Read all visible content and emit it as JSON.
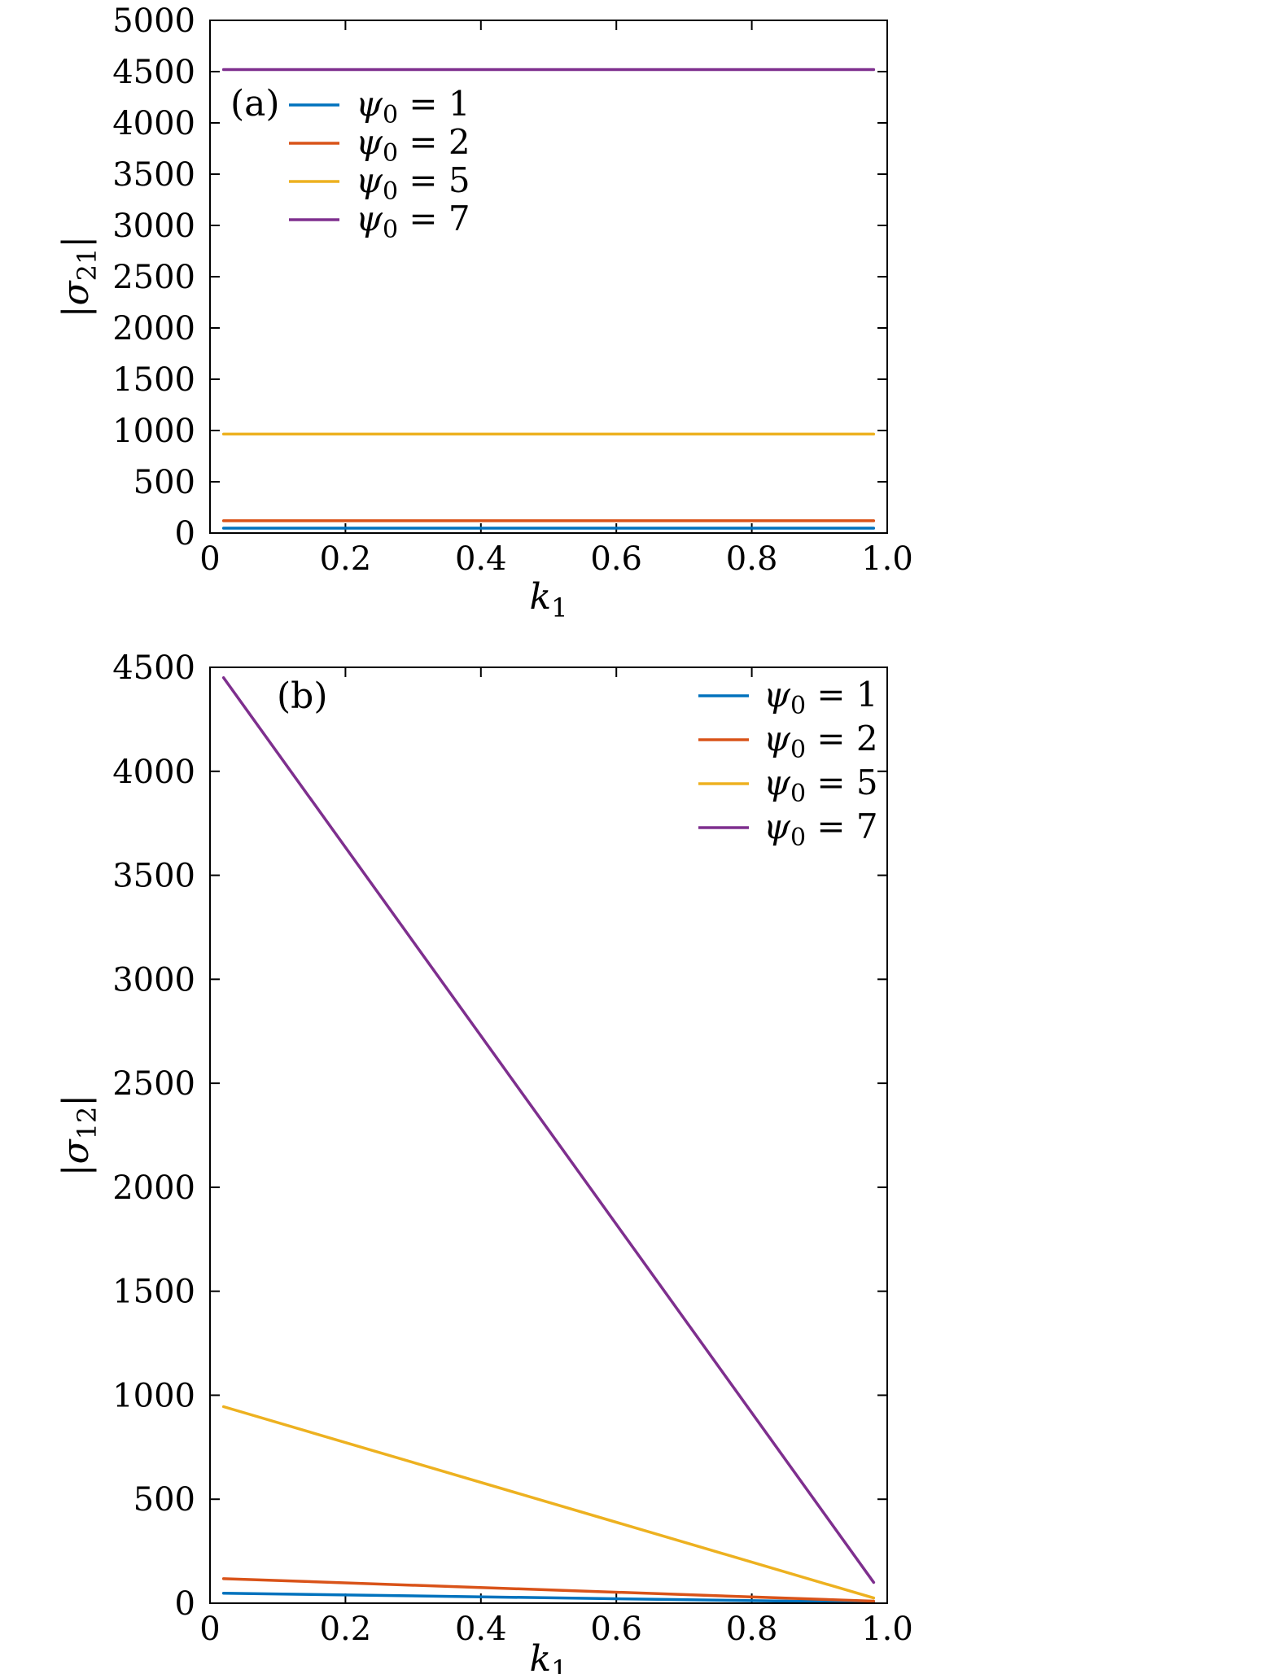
{
  "figure": {
    "background": "#ffffff",
    "axis_color": "#000000"
  },
  "chart_data": [
    {
      "id": "a",
      "type": "line",
      "panel_label": "(a)",
      "xlabel_segments": [
        {
          "t": "k",
          "italic": true
        },
        {
          "t": "1",
          "sub": true
        }
      ],
      "ylabel_segments": [
        {
          "t": "|",
          "italic": false
        },
        {
          "t": "σ",
          "italic": true
        },
        {
          "t": "21",
          "sub": true
        },
        {
          "t": "|",
          "italic": false
        }
      ],
      "xlim": [
        0,
        1
      ],
      "ylim": [
        0,
        5000
      ],
      "xticks": [
        0,
        0.2,
        0.4,
        0.6,
        0.8,
        1
      ],
      "xtick_labels": [
        "0",
        "0.2",
        "0.4",
        "0.6",
        "0.8",
        "1.0"
      ],
      "yticks": [
        0,
        500,
        1000,
        1500,
        2000,
        2500,
        3000,
        3500,
        4000,
        4500,
        5000
      ],
      "ytick_labels": [
        "0",
        "500",
        "1000",
        "1500",
        "2000",
        "2500",
        "3000",
        "3500",
        "4000",
        "4500",
        "5000"
      ],
      "grid": false,
      "legend_position": "top-left",
      "series": [
        {
          "label_segments": [
            {
              "t": "ψ",
              "italic": true
            },
            {
              "t": "0",
              "sub": true
            },
            {
              "t": " = 1",
              "italic": false
            }
          ],
          "color": "#0072BD",
          "x": [
            0.02,
            0.98
          ],
          "y": [
            48,
            48
          ]
        },
        {
          "label_segments": [
            {
              "t": "ψ",
              "italic": true
            },
            {
              "t": "0",
              "sub": true
            },
            {
              "t": " = 2",
              "italic": false
            }
          ],
          "color": "#D95319",
          "x": [
            0.02,
            0.98
          ],
          "y": [
            120,
            120
          ]
        },
        {
          "label_segments": [
            {
              "t": "ψ",
              "italic": true
            },
            {
              "t": "0",
              "sub": true
            },
            {
              "t": " = 5",
              "italic": false
            }
          ],
          "color": "#EDB120",
          "x": [
            0.02,
            0.98
          ],
          "y": [
            965,
            965
          ]
        },
        {
          "label_segments": [
            {
              "t": "ψ",
              "italic": true
            },
            {
              "t": "0",
              "sub": true
            },
            {
              "t": " = 7",
              "italic": false
            }
          ],
          "color": "#7E2F8E",
          "x": [
            0.02,
            0.98
          ],
          "y": [
            4520,
            4520
          ]
        }
      ]
    },
    {
      "id": "b",
      "type": "line",
      "panel_label": "(b)",
      "xlabel_segments": [
        {
          "t": "k",
          "italic": true
        },
        {
          "t": "1",
          "sub": true
        }
      ],
      "ylabel_segments": [
        {
          "t": "|",
          "italic": false
        },
        {
          "t": "σ",
          "italic": true
        },
        {
          "t": "12",
          "sub": true
        },
        {
          "t": "|",
          "italic": false
        }
      ],
      "xlim": [
        0,
        1
      ],
      "ylim": [
        0,
        4500
      ],
      "xticks": [
        0,
        0.2,
        0.4,
        0.6,
        0.8,
        1
      ],
      "xtick_labels": [
        "0",
        "0.2",
        "0.4",
        "0.6",
        "0.8",
        "1.0"
      ],
      "yticks": [
        0,
        500,
        1000,
        1500,
        2000,
        2500,
        3000,
        3500,
        4000,
        4500
      ],
      "ytick_labels": [
        "0",
        "500",
        "1000",
        "1500",
        "2000",
        "2500",
        "3000",
        "3500",
        "4000",
        "4500"
      ],
      "grid": false,
      "legend_position": "top-right",
      "series": [
        {
          "label_segments": [
            {
              "t": "ψ",
              "italic": true
            },
            {
              "t": "0",
              "sub": true
            },
            {
              "t": " = 1",
              "italic": false
            }
          ],
          "color": "#0072BD",
          "x": [
            0.02,
            0.98
          ],
          "y": [
            48,
            4
          ]
        },
        {
          "label_segments": [
            {
              "t": "ψ",
              "italic": true
            },
            {
              "t": "0",
              "sub": true
            },
            {
              "t": " = 2",
              "italic": false
            }
          ],
          "color": "#D95319",
          "x": [
            0.02,
            0.98
          ],
          "y": [
            118,
            10
          ]
        },
        {
          "label_segments": [
            {
              "t": "ψ",
              "italic": true
            },
            {
              "t": "0",
              "sub": true
            },
            {
              "t": " = 5",
              "italic": false
            }
          ],
          "color": "#EDB120",
          "x": [
            0.02,
            0.98
          ],
          "y": [
            945,
            25
          ]
        },
        {
          "label_segments": [
            {
              "t": "ψ",
              "italic": true
            },
            {
              "t": "0",
              "sub": true
            },
            {
              "t": " = 7",
              "italic": false
            }
          ],
          "color": "#7E2F8E",
          "x": [
            0.02,
            0.98
          ],
          "y": [
            4450,
            100
          ]
        }
      ]
    }
  ]
}
